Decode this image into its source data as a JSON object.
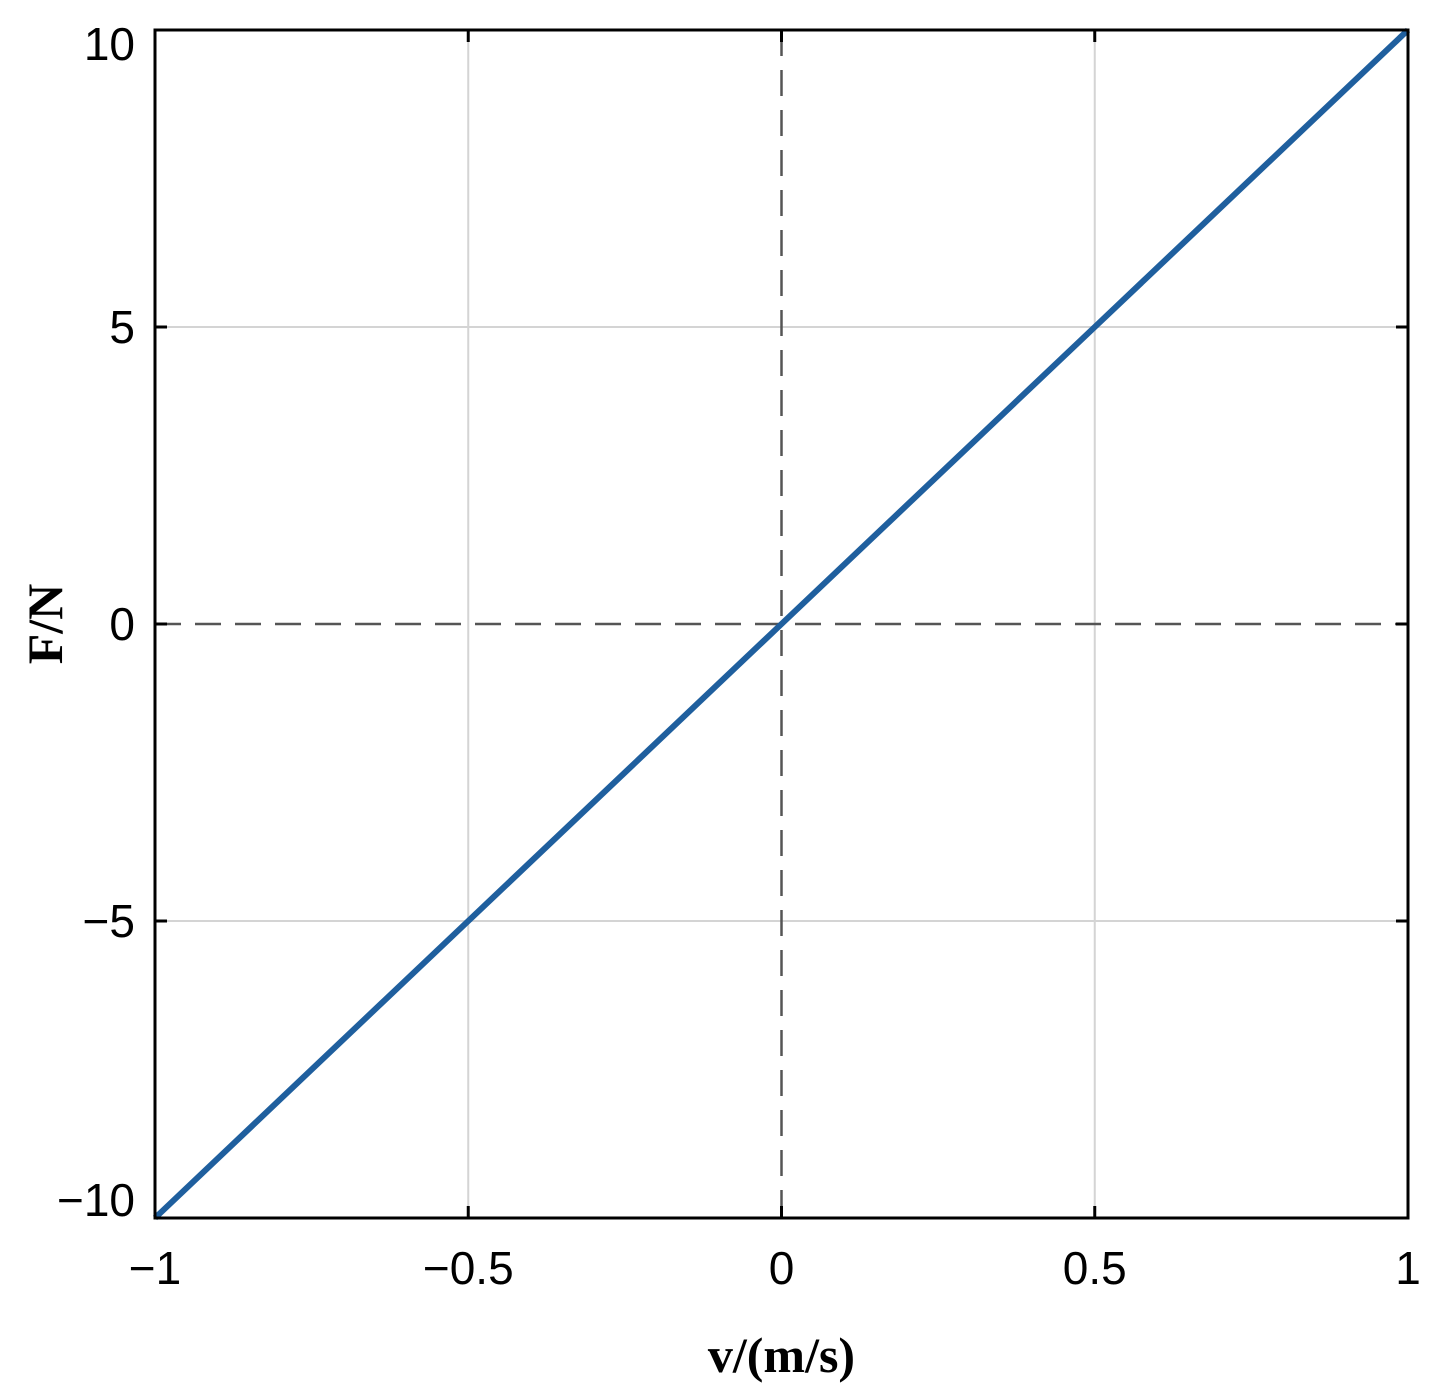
{
  "chart_data": {
    "type": "line",
    "title": "",
    "xlabel": "v/(m/s)",
    "ylabel": "F/N",
    "xlim": [
      -1,
      1
    ],
    "ylim": [
      -10,
      10
    ],
    "x_ticks": [
      -1,
      -0.5,
      0,
      0.5,
      1
    ],
    "x_tick_labels": [
      "−1",
      "−0.5",
      "0",
      "0.5",
      "1"
    ],
    "y_ticks": [
      -10,
      -5,
      0,
      5,
      10
    ],
    "y_tick_labels": [
      "−10",
      "−5",
      "0",
      "5",
      "10"
    ],
    "grid": true,
    "zero_lines": "dashed",
    "legend": "none",
    "series": [
      {
        "color": "#1f5f9e",
        "x": [
          -1,
          -0.5,
          0,
          0.5,
          1
        ],
        "y": [
          -10,
          -5,
          0,
          5,
          10
        ]
      }
    ]
  }
}
